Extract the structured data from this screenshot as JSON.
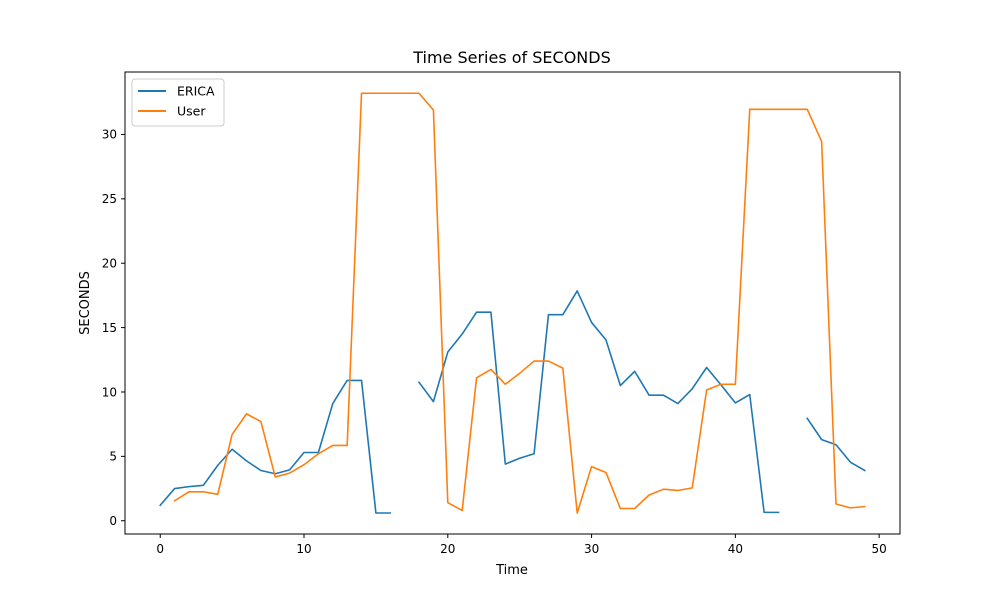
{
  "chart_data": {
    "type": "line",
    "title": "Time Series of SECONDS",
    "xlabel": "Time",
    "ylabel": "SECONDS",
    "xlim": [
      -2.45,
      51.45
    ],
    "ylim": [
      -1.03,
      34.85
    ],
    "xticks": [
      0,
      10,
      20,
      30,
      40,
      50
    ],
    "yticks": [
      0,
      5,
      10,
      15,
      20,
      25,
      30
    ],
    "grid": false,
    "legend_position": "top-left",
    "x": [
      0,
      1,
      2,
      3,
      4,
      5,
      6,
      7,
      8,
      9,
      10,
      11,
      12,
      13,
      14,
      15,
      16,
      17,
      18,
      19,
      20,
      21,
      22,
      23,
      24,
      25,
      26,
      27,
      28,
      29,
      30,
      31,
      32,
      33,
      34,
      35,
      36,
      37,
      38,
      39,
      40,
      41,
      42,
      43,
      44,
      45,
      46,
      47,
      48,
      49
    ],
    "series": [
      {
        "name": "ERICA",
        "color": "#1f77b4",
        "values": [
          1.2,
          2.5,
          2.65,
          2.75,
          4.3,
          5.55,
          4.65,
          3.9,
          3.65,
          3.95,
          5.3,
          5.3,
          9.1,
          10.9,
          10.9,
          0.6,
          0.6,
          null,
          10.75,
          9.25,
          13.1,
          14.5,
          16.2,
          16.2,
          4.4,
          4.85,
          5.2,
          16.0,
          16.0,
          17.85,
          15.4,
          14.05,
          10.5,
          11.6,
          9.75,
          9.75,
          9.1,
          10.25,
          11.9,
          10.55,
          9.15,
          9.8,
          0.65,
          0.65,
          null,
          7.95,
          6.3,
          5.9,
          4.55,
          3.9
        ]
      },
      {
        "name": "User",
        "color": "#ff7f0e",
        "values": [
          null,
          1.55,
          2.25,
          2.25,
          2.05,
          6.7,
          8.3,
          7.7,
          3.4,
          3.7,
          4.35,
          5.2,
          5.85,
          5.85,
          33.2,
          33.2,
          33.2,
          33.2,
          33.2,
          31.9,
          1.4,
          0.8,
          11.1,
          11.75,
          10.6,
          11.45,
          12.4,
          12.4,
          11.85,
          0.6,
          4.2,
          3.75,
          0.95,
          0.95,
          2.0,
          2.45,
          2.35,
          2.55,
          10.15,
          10.6,
          10.6,
          31.95,
          31.95,
          31.95,
          31.95,
          31.95,
          29.45,
          1.3,
          1.0,
          1.1
        ]
      }
    ]
  }
}
